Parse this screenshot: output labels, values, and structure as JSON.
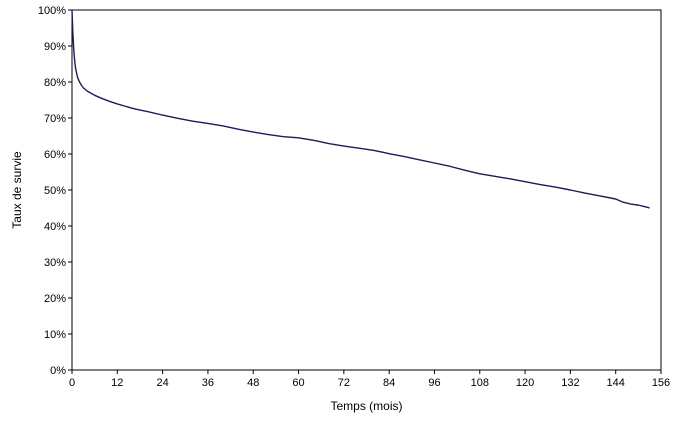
{
  "chart_data": {
    "type": "line",
    "title": "",
    "xlabel": "Temps (mois)",
    "ylabel": "Taux de survie",
    "xlim": [
      0,
      156
    ],
    "ylim": [
      0,
      100
    ],
    "x_ticks": [
      0,
      12,
      24,
      36,
      48,
      60,
      72,
      84,
      96,
      108,
      120,
      132,
      144,
      156
    ],
    "x_tick_labels": [
      "0",
      "12",
      "24",
      "36",
      "48",
      "60",
      "72",
      "84",
      "96",
      "108",
      "120",
      "132",
      "144",
      "156"
    ],
    "y_ticks": [
      0,
      10,
      20,
      30,
      40,
      50,
      60,
      70,
      80,
      90,
      100
    ],
    "y_tick_labels": [
      "0%",
      "10%",
      "20%",
      "30%",
      "40%",
      "50%",
      "60%",
      "70%",
      "80%",
      "90%",
      "100%"
    ],
    "grid": false,
    "line_color": "#1f1a5c",
    "series": [
      {
        "x": [
          0,
          0.25,
          0.5,
          0.75,
          1,
          1.5,
          2,
          2.5,
          3,
          4,
          5,
          6,
          8,
          10,
          12,
          14,
          16,
          18,
          20,
          24,
          28,
          32,
          36,
          40,
          44,
          48,
          52,
          56,
          60,
          64,
          68,
          72,
          76,
          80,
          84,
          88,
          92,
          96,
          100,
          104,
          108,
          112,
          116,
          120,
          124,
          128,
          132,
          136,
          140,
          144,
          146,
          148,
          150,
          152,
          153
        ],
        "y": [
          100,
          93,
          88.5,
          85.5,
          83.5,
          81.2,
          80,
          79.1,
          78.4,
          77.5,
          76.9,
          76.3,
          75.4,
          74.6,
          73.9,
          73.3,
          72.7,
          72.2,
          71.8,
          70.8,
          69.9,
          69.1,
          68.5,
          67.8,
          66.9,
          66.1,
          65.4,
          64.8,
          64.5,
          63.8,
          62.9,
          62.2,
          61.6,
          61,
          60.1,
          59.3,
          58.4,
          57.5,
          56.6,
          55.5,
          54.5,
          53.8,
          53.1,
          52.3,
          51.5,
          50.8,
          50,
          49.1,
          48.3,
          47.5,
          46.6,
          46.1,
          45.8,
          45.3,
          45
        ]
      }
    ]
  }
}
